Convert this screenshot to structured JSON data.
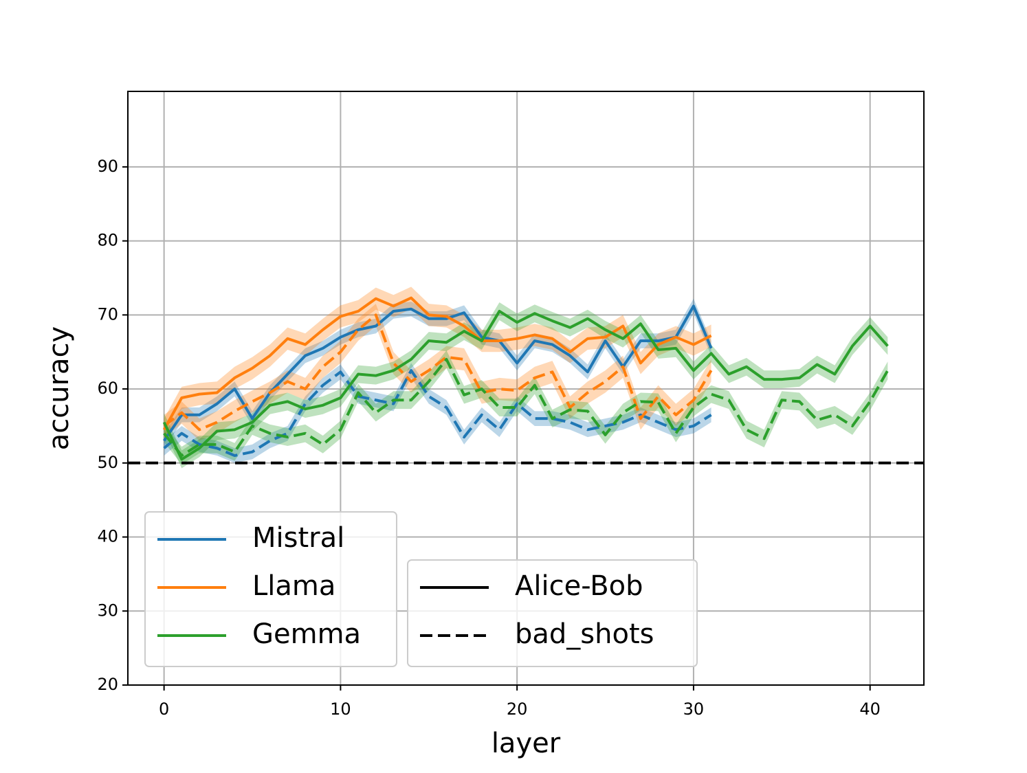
{
  "chart_data": {
    "type": "line",
    "xlabel": "layer",
    "ylabel": "accuracy",
    "x": [
      0,
      1,
      2,
      3,
      4,
      5,
      6,
      7,
      8,
      9,
      10,
      11,
      12,
      13,
      14,
      15,
      16,
      17,
      18,
      19,
      20,
      21,
      22,
      23,
      24,
      25,
      26,
      27,
      28,
      29,
      30,
      31,
      32,
      33,
      34,
      35,
      36,
      37,
      38,
      39,
      40,
      41
    ],
    "xlim": [
      -2.05,
      43.05
    ],
    "xticks": [
      0,
      10,
      20,
      30,
      40
    ],
    "ylim": [
      20,
      100.2
    ],
    "yticks": [
      20,
      30,
      40,
      50,
      60,
      70,
      80,
      90
    ],
    "grid": true,
    "reference_lines": [
      {
        "y": 50,
        "color": "#000000",
        "linestyle": "dashed"
      }
    ],
    "series": [
      {
        "name": "Mistral",
        "color": "#1f77b4",
        "linestyle": "solid",
        "error": 1.0,
        "values": [
          53,
          56.5,
          56.5,
          58,
          60,
          56,
          59.5,
          62,
          64.5,
          65.5,
          67,
          68,
          68.5,
          70.5,
          70.8,
          69.5,
          69.5,
          70.3,
          67,
          66.5,
          63.5,
          66.5,
          66,
          64.5,
          62.3,
          66.5,
          63,
          66.5,
          66.5,
          67,
          71.2,
          65.5,
          null,
          null,
          null,
          null,
          null,
          null,
          null,
          null,
          null,
          null
        ]
      },
      {
        "name": "Mistral",
        "color": "#1f77b4",
        "linestyle": "dashed",
        "error": 1.0,
        "values": [
          52,
          54,
          52.5,
          52,
          51,
          51.5,
          53,
          54,
          58,
          60.5,
          62.3,
          59,
          58.5,
          58,
          62.5,
          59,
          57.5,
          53.5,
          56.5,
          54.5,
          58,
          56,
          56,
          55.5,
          54.5,
          55,
          55.5,
          56.5,
          55.5,
          54.5,
          55,
          56.5,
          null,
          null,
          null,
          null,
          null,
          null,
          null,
          null,
          null,
          null
        ]
      },
      {
        "name": "Llama",
        "color": "#ff7f0e",
        "linestyle": "solid",
        "error": 1.5,
        "values": [
          54.5,
          58.8,
          59.3,
          59.5,
          61.5,
          62.8,
          64.5,
          66.8,
          66,
          68,
          69.8,
          70.5,
          72.2,
          71.2,
          72.3,
          70,
          69.8,
          68.5,
          66.5,
          66.5,
          66.8,
          67.3,
          66.8,
          65,
          66.8,
          67,
          68.5,
          63.5,
          66,
          67,
          66,
          67.2,
          null,
          null,
          null,
          null,
          null,
          null,
          null,
          null,
          null,
          null
        ]
      },
      {
        "name": "Llama",
        "color": "#ff7f0e",
        "linestyle": "dashed",
        "error": 1.5,
        "values": [
          55,
          56.8,
          54.5,
          55.5,
          57,
          58.3,
          59.5,
          61,
          60,
          63,
          65,
          68,
          70,
          63.5,
          61,
          62.5,
          64.3,
          64,
          59.5,
          60,
          59.8,
          61.5,
          62.3,
          57.5,
          59.5,
          61,
          63,
          56,
          59,
          56.5,
          58.5,
          62.5,
          null,
          null,
          null,
          null,
          null,
          null,
          null,
          null,
          null,
          null
        ]
      },
      {
        "name": "Gemma",
        "color": "#2ca02c",
        "linestyle": "solid",
        "error": 1.2,
        "values": [
          55.5,
          50.5,
          52,
          54.3,
          54.5,
          55.5,
          57.8,
          58.3,
          57.3,
          57.8,
          58.8,
          62,
          61.8,
          62.5,
          64,
          66.5,
          66.3,
          67.8,
          66.5,
          70.5,
          69,
          70.2,
          69.2,
          68.3,
          69.5,
          68,
          66.8,
          68.8,
          65.3,
          65.5,
          62.5,
          64.8,
          62,
          63,
          61.3,
          61.3,
          61.5,
          63.3,
          62,
          65.8,
          68.5,
          65.8
        ]
      },
      {
        "name": "Gemma",
        "color": "#2ca02c",
        "linestyle": "dashed",
        "error": 1.2,
        "values": [
          54,
          51,
          52.5,
          52.5,
          51.5,
          55,
          54,
          53.5,
          54,
          52.5,
          54.5,
          59.5,
          56.8,
          58.5,
          58.5,
          61,
          64,
          59.2,
          60,
          57.5,
          57.5,
          60.5,
          56,
          57.2,
          57,
          53.8,
          56.8,
          58.3,
          58.2,
          54,
          57.5,
          59.3,
          58.5,
          54.5,
          53.3,
          58.5,
          58.3,
          55.8,
          56.5,
          55,
          58.3,
          62.5
        ]
      }
    ],
    "legend_loc": "lower left",
    "linestyle_legend": [
      {
        "name": "Alice-Bob",
        "linestyle": "solid"
      },
      {
        "name": "bad_shots",
        "linestyle": "dashed"
      }
    ],
    "linestyle_legend_loc": "lower center"
  }
}
